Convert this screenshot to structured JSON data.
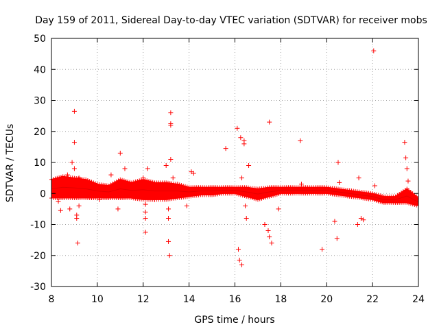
{
  "chart_data": {
    "type": "scatter",
    "title": "Day 159 of 2011, Sidereal Day-to-day VTEC variation (SDTVAR) for receiver mobs",
    "xlabel": "GPS time / hours",
    "ylabel": "SDTVAR / TECUs",
    "xlim": [
      8,
      24
    ],
    "ylim": [
      -30,
      50
    ],
    "xticks": [
      8,
      10,
      12,
      14,
      16,
      18,
      20,
      22,
      24
    ],
    "yticks": [
      -30,
      -20,
      -10,
      0,
      10,
      20,
      30,
      40,
      50
    ],
    "grid": true,
    "marker": "+",
    "color": "#ff0000",
    "band": {
      "description": "dense continuous band of samples",
      "x": [
        8.0,
        8.5,
        9.0,
        9.5,
        10.0,
        10.5,
        11.0,
        11.5,
        12.0,
        12.5,
        13.0,
        13.5,
        14.0,
        14.5,
        15.0,
        15.5,
        16.0,
        16.5,
        17.0,
        17.5,
        18.0,
        18.5,
        19.0,
        19.5,
        20.0,
        20.5,
        21.0,
        21.5,
        22.0,
        22.5,
        23.0,
        23.5,
        24.0
      ],
      "upper": [
        4.5,
        5.5,
        5.0,
        4.5,
        3.0,
        2.5,
        4.5,
        3.5,
        4.5,
        3.5,
        3.5,
        3.0,
        2.0,
        2.0,
        2.0,
        2.0,
        2.0,
        2.0,
        1.5,
        2.0,
        2.0,
        2.0,
        2.0,
        2.0,
        2.0,
        1.5,
        1.0,
        0.5,
        0.0,
        -1.0,
        -1.0,
        1.5,
        -1.5
      ],
      "lower": [
        -1.5,
        -1.5,
        -1.5,
        -1.5,
        -1.5,
        -1.5,
        -1.5,
        -1.5,
        -2.0,
        -2.0,
        -2.0,
        -1.5,
        -1.0,
        -0.5,
        -0.5,
        0.0,
        0.0,
        -1.0,
        -2.0,
        -1.0,
        0.0,
        0.0,
        0.0,
        0.0,
        0.0,
        -0.5,
        -1.0,
        -1.5,
        -2.0,
        -3.0,
        -3.0,
        -3.0,
        -4.0
      ],
      "series": {
        "x": [
          8.0,
          8.5,
          9.0,
          9.5,
          10.0,
          10.5,
          11.0,
          11.5,
          12.0,
          12.5,
          13.0,
          13.5,
          14.0,
          14.5,
          15.0,
          15.5,
          16.0,
          16.5,
          17.0,
          17.5,
          18.0,
          18.5,
          19.0,
          19.5,
          20.0,
          20.5,
          21.0,
          21.5,
          22.0,
          22.5,
          23.0,
          23.5,
          24.0
        ],
        "y": [
          1.5,
          2.0,
          1.8,
          1.5,
          0.8,
          0.5,
          1.5,
          1.0,
          1.2,
          0.8,
          0.8,
          0.8,
          0.5,
          0.8,
          0.8,
          1.0,
          1.0,
          0.5,
          -0.2,
          0.5,
          1.0,
          1.0,
          1.0,
          1.0,
          1.0,
          0.5,
          0.0,
          -0.5,
          -1.0,
          -2.0,
          -2.0,
          -0.8,
          -2.8
        ]
      }
    },
    "points": {
      "x": [
        8.2,
        8.3,
        8.4,
        8.7,
        8.8,
        8.9,
        9.0,
        9.0,
        9.0,
        9.1,
        9.1,
        9.15,
        9.2,
        9.2,
        10.0,
        10.1,
        10.6,
        10.9,
        11.0,
        11.2,
        12.0,
        12.1,
        12.1,
        12.1,
        12.1,
        12.2,
        12.5,
        12.8,
        13.0,
        13.1,
        13.1,
        13.1,
        13.15,
        13.2,
        13.2,
        13.2,
        13.2,
        13.3,
        13.5,
        13.9,
        14.1,
        14.2,
        15.6,
        16.1,
        16.15,
        16.2,
        16.25,
        16.3,
        16.3,
        16.4,
        16.4,
        16.45,
        16.5,
        16.6,
        17.3,
        17.45,
        17.5,
        17.5,
        17.6,
        17.9,
        18.85,
        18.9,
        19.8,
        20.35,
        20.45,
        20.5,
        20.55,
        21.35,
        21.4,
        21.5,
        21.6,
        22.05,
        22.1,
        23.4,
        23.45,
        23.5,
        23.55
      ],
      "y": [
        -0.5,
        -2.5,
        -5.5,
        6.0,
        -5.0,
        10.0,
        8.0,
        26.5,
        16.5,
        -7.0,
        -8.0,
        -16.0,
        5.0,
        -4.0,
        2.0,
        -2.0,
        6.0,
        -5.0,
        13.0,
        8.0,
        5.0,
        -3.5,
        -6.0,
        -8.0,
        -12.5,
        8.0,
        -2.0,
        2.5,
        9.0,
        -5.0,
        -8.0,
        -15.5,
        -20.0,
        11.0,
        26.0,
        22.5,
        22.0,
        5.0,
        3.0,
        -4.0,
        7.0,
        6.5,
        14.5,
        21.0,
        -18.0,
        -21.5,
        18.0,
        -23.0,
        5.0,
        17.0,
        16.0,
        -4.0,
        -8.0,
        9.0,
        -10.0,
        -12.0,
        23.0,
        -14.0,
        -16.0,
        -5.0,
        17.0,
        3.0,
        -18.0,
        -9.0,
        -14.5,
        10.0,
        3.5,
        -10.0,
        5.0,
        -8.0,
        -8.5,
        46.0,
        2.5,
        16.5,
        11.5,
        8.0,
        4.0
      ]
    }
  }
}
